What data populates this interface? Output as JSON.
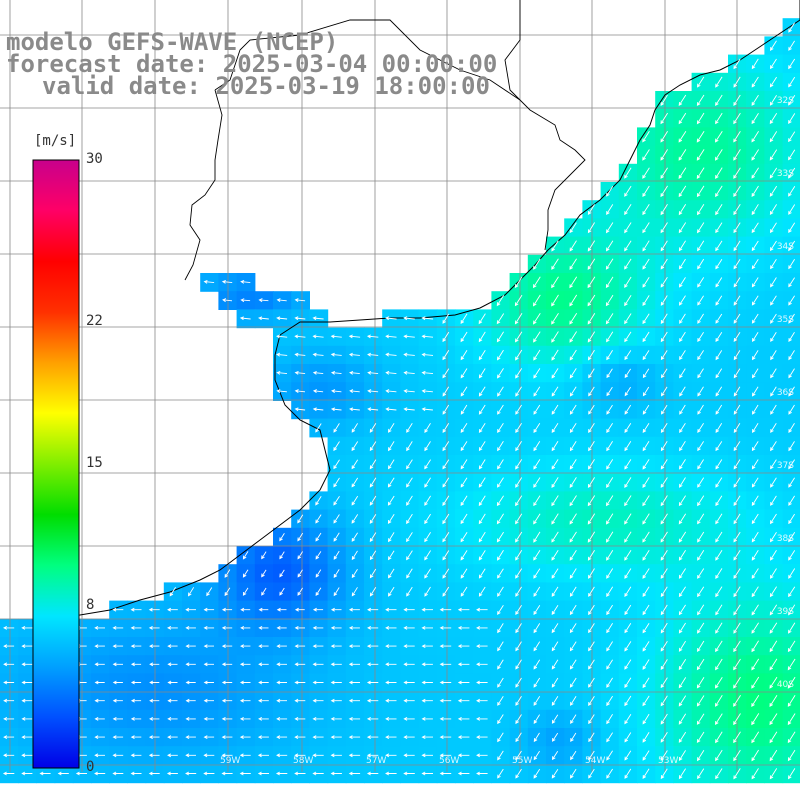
{
  "titles": {
    "line1": "modelo GEFS-WAVE (NCEP)",
    "line2": "forecast date: 2025-03-04 00:00:00",
    "line3": "valid date: 2025-03-19 18:00:00"
  },
  "colorbar": {
    "unit": "[m/s]",
    "ticks": [
      {
        "value": 30,
        "label": "30"
      },
      {
        "value": 22,
        "label": "22"
      },
      {
        "value": 15,
        "label": "15"
      },
      {
        "value": 8,
        "label": "8"
      },
      {
        "value": 0,
        "label": "0"
      }
    ],
    "stops": [
      "#0000e6",
      "#0050ff",
      "#00a0ff",
      "#00e6ff",
      "#00ff80",
      "#00dd00",
      "#80ee00",
      "#ffff00",
      "#ffa000",
      "#ff3000",
      "#ff0000",
      "#ff0066",
      "#c8008c"
    ]
  },
  "lat_labels": [
    "32S",
    "33S",
    "34S",
    "35S",
    "36S",
    "37S",
    "38S",
    "39S",
    "40S"
  ],
  "lon_labels": [
    "59W",
    "58W",
    "57W",
    "56W",
    "55W",
    "54W",
    "53W"
  ],
  "colors": {
    "land": "#ffffff",
    "coast": "#000000",
    "grid": "#888888",
    "arrow": "#ffffff",
    "title": "#8a8a8a"
  }
}
